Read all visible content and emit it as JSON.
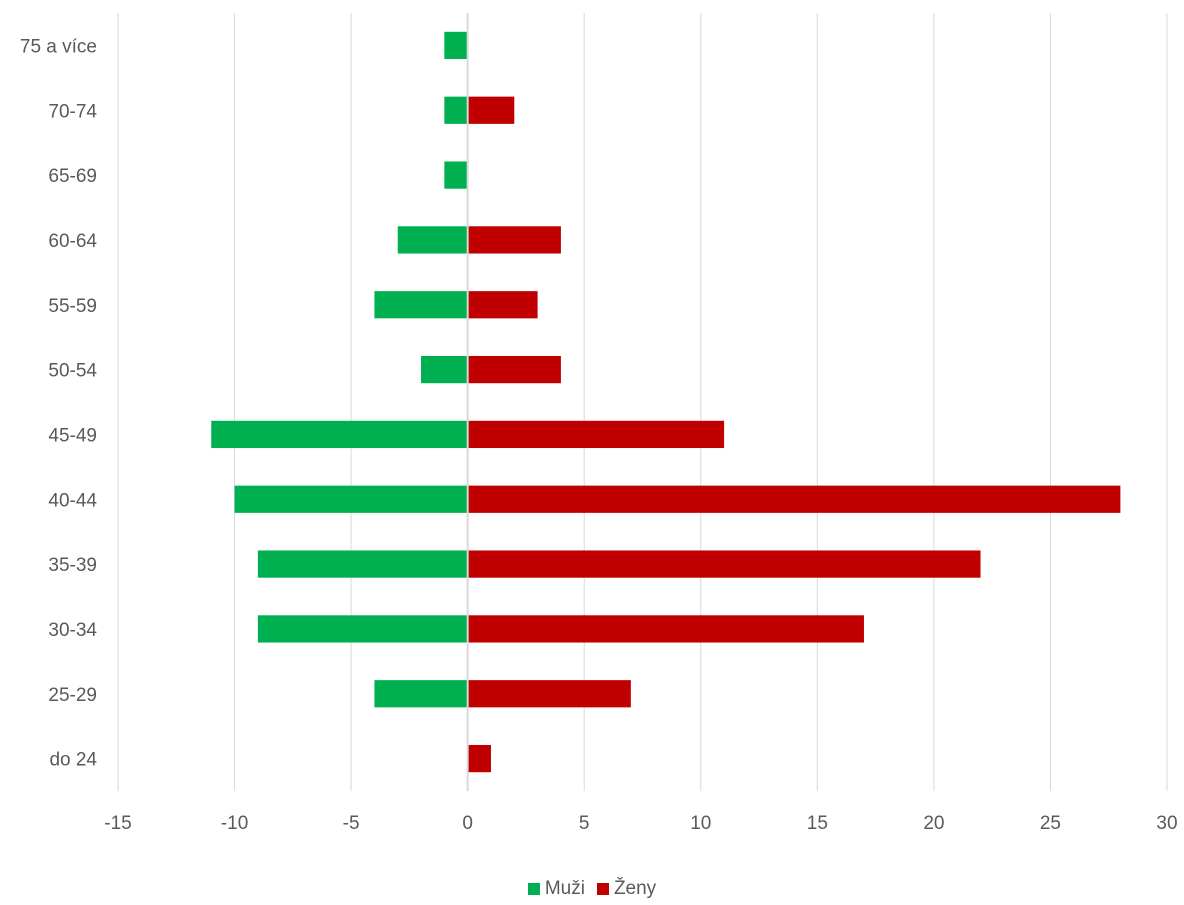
{
  "chart_data": {
    "type": "bar",
    "orientation": "horizontal",
    "layout": "population-pyramid",
    "categories": [
      "75 a více",
      "70-74",
      "65-69",
      "60-64",
      "55-59",
      "50-54",
      "45-49",
      "40-44",
      "35-39",
      "30-34",
      "25-29",
      "do 24"
    ],
    "series": [
      {
        "name": "Muži",
        "color": "#00b050",
        "values": [
          -1,
          -1,
          -1,
          -3,
          -4,
          -2,
          -11,
          -10,
          -9,
          -9,
          -4,
          0
        ]
      },
      {
        "name": "Ženy",
        "color": "#c00000",
        "values": [
          0,
          2,
          0,
          4,
          3,
          4,
          11,
          28,
          22,
          17,
          7,
          1
        ]
      }
    ],
    "xlim": [
      -15,
      30
    ],
    "xticks": [
      "-15",
      "-10",
      "-5",
      "0",
      "5",
      "10",
      "15",
      "20",
      "25",
      "30"
    ],
    "grid": true,
    "legend_position": "bottom",
    "title": "",
    "xlabel": "",
    "ylabel": ""
  }
}
